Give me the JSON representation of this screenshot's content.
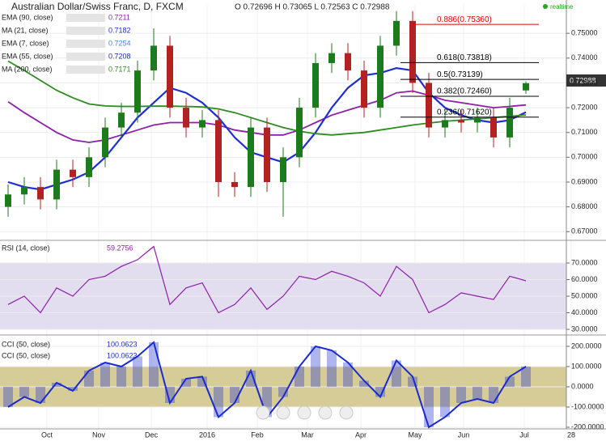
{
  "header": {
    "title": "Australian Dollar/Swiss Franc, D, FXCM",
    "ohlc": "O 0.72696 H 0.73065 L 0.72563 C 0.72988",
    "realtime": "realtime",
    "last_price": "0.72988"
  },
  "chart_data": [
    {
      "type": "candlestick",
      "xlim": [
        -0.5,
        34.5
      ],
      "ylim": [
        0.6665,
        0.7618
      ],
      "yticks": [
        {
          "value": 0.67,
          "label": "0.67000"
        },
        {
          "value": 0.68,
          "label": "0.68000"
        },
        {
          "value": 0.69,
          "label": "0.69000"
        },
        {
          "value": 0.7,
          "label": "0.70000"
        },
        {
          "value": 0.71,
          "label": "0.71000"
        },
        {
          "value": 0.72,
          "label": "0.72000"
        },
        {
          "value": 0.73,
          "label": "0.73000"
        },
        {
          "value": 0.74,
          "label": "0.74000"
        },
        {
          "value": 0.75,
          "label": "0.75000"
        }
      ],
      "open": [
        0.68,
        0.685,
        0.688,
        0.683,
        0.695,
        0.692,
        0.7,
        0.712,
        0.718,
        0.735,
        0.745,
        0.72,
        0.712,
        0.715,
        0.69,
        0.688,
        0.712,
        0.69,
        0.7,
        0.72,
        0.738,
        0.742,
        0.735,
        0.72,
        0.745,
        0.755,
        0.73,
        0.712,
        0.715,
        0.714,
        0.716,
        0.708,
        0.72696
      ],
      "high": [
        0.689,
        0.692,
        0.692,
        0.699,
        0.699,
        0.704,
        0.716,
        0.722,
        0.739,
        0.752,
        0.749,
        0.724,
        0.719,
        0.719,
        0.694,
        0.716,
        0.716,
        0.704,
        0.724,
        0.742,
        0.746,
        0.746,
        0.739,
        0.749,
        0.759,
        0.759,
        0.734,
        0.719,
        0.719,
        0.72,
        0.72,
        0.724,
        0.73065
      ],
      "low": [
        0.676,
        0.681,
        0.679,
        0.679,
        0.688,
        0.688,
        0.696,
        0.708,
        0.714,
        0.731,
        0.716,
        0.708,
        0.708,
        0.684,
        0.684,
        0.684,
        0.686,
        0.676,
        0.696,
        0.716,
        0.734,
        0.731,
        0.716,
        0.716,
        0.741,
        0.726,
        0.708,
        0.708,
        0.71,
        0.71,
        0.704,
        0.704,
        0.72563
      ],
      "close": [
        0.685,
        0.688,
        0.683,
        0.695,
        0.692,
        0.7,
        0.712,
        0.718,
        0.735,
        0.745,
        0.72,
        0.712,
        0.715,
        0.69,
        0.688,
        0.712,
        0.69,
        0.7,
        0.72,
        0.738,
        0.742,
        0.735,
        0.72,
        0.745,
        0.755,
        0.73,
        0.712,
        0.715,
        0.714,
        0.716,
        0.708,
        0.72,
        0.72988
      ],
      "up_color": "#1d7a1d",
      "down_color": "#b22222",
      "legend": [
        {
          "name": "EMA (90, close)",
          "value_label": "0.7211",
          "color": "#8e1fa8"
        },
        {
          "name": "MA (21, close)",
          "value_label": "0.7182",
          "color": "#1e2fd0"
        },
        {
          "name": "EMA (7, close)",
          "value_label": "0.7254",
          "color": "#3d8be0"
        },
        {
          "name": "EMA (55, close)",
          "value_label": "0.7208",
          "color": "#1a2a9a"
        },
        {
          "name": "MA (200, close)",
          "value_label": "0.7171",
          "color": "#2e8b22"
        }
      ],
      "series": [
        {
          "name": "EMA (90, close)",
          "color": "#8e1fa8",
          "values": [
            0.7224,
            0.718,
            0.714,
            0.71,
            0.707,
            0.706,
            0.707,
            0.709,
            0.711,
            0.713,
            0.714,
            0.714,
            0.714,
            0.713,
            0.711,
            0.71,
            0.709,
            0.709,
            0.711,
            0.714,
            0.717,
            0.719,
            0.721,
            0.723,
            0.726,
            0.7267,
            0.725,
            0.723,
            0.722,
            0.721,
            0.72,
            0.7205,
            0.7211
          ]
        },
        {
          "name": "MA (21, close)",
          "color": "#1e2fd0",
          "values": [
            0.69,
            0.688,
            0.687,
            0.689,
            0.691,
            0.694,
            0.7,
            0.708,
            0.716,
            0.722,
            0.728,
            0.726,
            0.722,
            0.716,
            0.708,
            0.702,
            0.7,
            0.698,
            0.702,
            0.71,
            0.72,
            0.728,
            0.733,
            0.734,
            0.736,
            0.735,
            0.726,
            0.72,
            0.717,
            0.715,
            0.714,
            0.715,
            0.7182
          ]
        },
        {
          "name": "MA (200, close)",
          "color": "#2e8b22",
          "values": [
            0.7388,
            0.735,
            0.731,
            0.727,
            0.724,
            0.7215,
            0.7207,
            0.7205,
            0.7205,
            0.7206,
            0.7206,
            0.7205,
            0.7203,
            0.7195,
            0.718,
            0.716,
            0.714,
            0.712,
            0.7105,
            0.7095,
            0.709,
            0.7095,
            0.71,
            0.711,
            0.712,
            0.713,
            0.7138,
            0.7145,
            0.715,
            0.7155,
            0.716,
            0.7165,
            0.7171
          ]
        }
      ],
      "fib_levels": [
        {
          "label": "0.886(0.75360)",
          "value": 0.7536,
          "color": "#e00000"
        },
        {
          "label": "0.618(0.73818)",
          "value": 0.73818,
          "color": "#000"
        },
        {
          "label": "0.5(0.73139)",
          "value": 0.73139,
          "color": "#000"
        },
        {
          "label": "0.382(0.72460)",
          "value": 0.7246,
          "color": "#000"
        },
        {
          "label": "0.236(0.71620)",
          "value": 0.7162,
          "color": "#000"
        }
      ]
    },
    {
      "type": "line",
      "ylim": [
        26.6,
        83.2
      ],
      "band": [
        30,
        70
      ],
      "band_color": "#e2def0",
      "yticks": [
        {
          "value": 30,
          "label": "30.0000"
        },
        {
          "value": 40,
          "label": "40.0000"
        },
        {
          "value": 50,
          "label": "50.0000"
        },
        {
          "value": 60,
          "label": "60.0000"
        },
        {
          "value": 70,
          "label": "70.0000"
        }
      ],
      "series": [
        {
          "name": "RSI (14, close)",
          "value_label": "59.2756",
          "color": "#8e1fa8",
          "values": [
            45,
            50,
            40,
            55,
            50,
            60,
            62,
            68,
            72,
            80,
            45,
            55,
            58,
            40,
            45,
            55,
            42,
            50,
            62,
            60,
            65,
            62,
            58,
            50,
            68,
            60,
            40,
            45,
            52,
            50,
            48,
            62,
            59.2756
          ]
        }
      ]
    },
    {
      "type": "histogram-line",
      "ylim": [
        -208,
        256
      ],
      "band": [
        -100,
        100
      ],
      "band_color": "#d6cc98",
      "yticks": [
        {
          "value": -200,
          "label": "-200.0000"
        },
        {
          "value": -100,
          "label": "-100.0000"
        },
        {
          "value": 0,
          "label": "0.0000"
        },
        {
          "value": 100,
          "label": "100.0000"
        },
        {
          "value": 200,
          "label": "200.0000"
        }
      ],
      "series": [
        {
          "name": "CCI (50, close)",
          "value_label": "100.0623",
          "color": "#1a2ad0",
          "values": [
            -100,
            -50,
            -80,
            20,
            -20,
            80,
            120,
            100,
            150,
            220,
            -80,
            40,
            50,
            -150,
            -80,
            80,
            -150,
            -50,
            100,
            200,
            180,
            120,
            30,
            -50,
            130,
            50,
            -200,
            -150,
            -80,
            -60,
            -80,
            50,
            100.0623
          ]
        },
        {
          "name": "CCI (50, close)",
          "value_label": "100.0623",
          "color": "#1a2ad0"
        }
      ]
    }
  ],
  "xticks": [
    {
      "value": 2.4,
      "label": "Oct"
    },
    {
      "value": 5.6,
      "label": "Nov"
    },
    {
      "value": 8.85,
      "label": "Dec"
    },
    {
      "value": 12.3,
      "label": "2016"
    },
    {
      "value": 15.4,
      "label": "Feb"
    },
    {
      "value": 18.5,
      "label": "Mar"
    },
    {
      "value": 21.8,
      "label": "Apr"
    },
    {
      "value": 25.15,
      "label": "May"
    },
    {
      "value": 28.15,
      "label": "Jun"
    },
    {
      "value": 31.9,
      "label": "Jul"
    },
    {
      "value": 34.8,
      "label": "28"
    }
  ]
}
